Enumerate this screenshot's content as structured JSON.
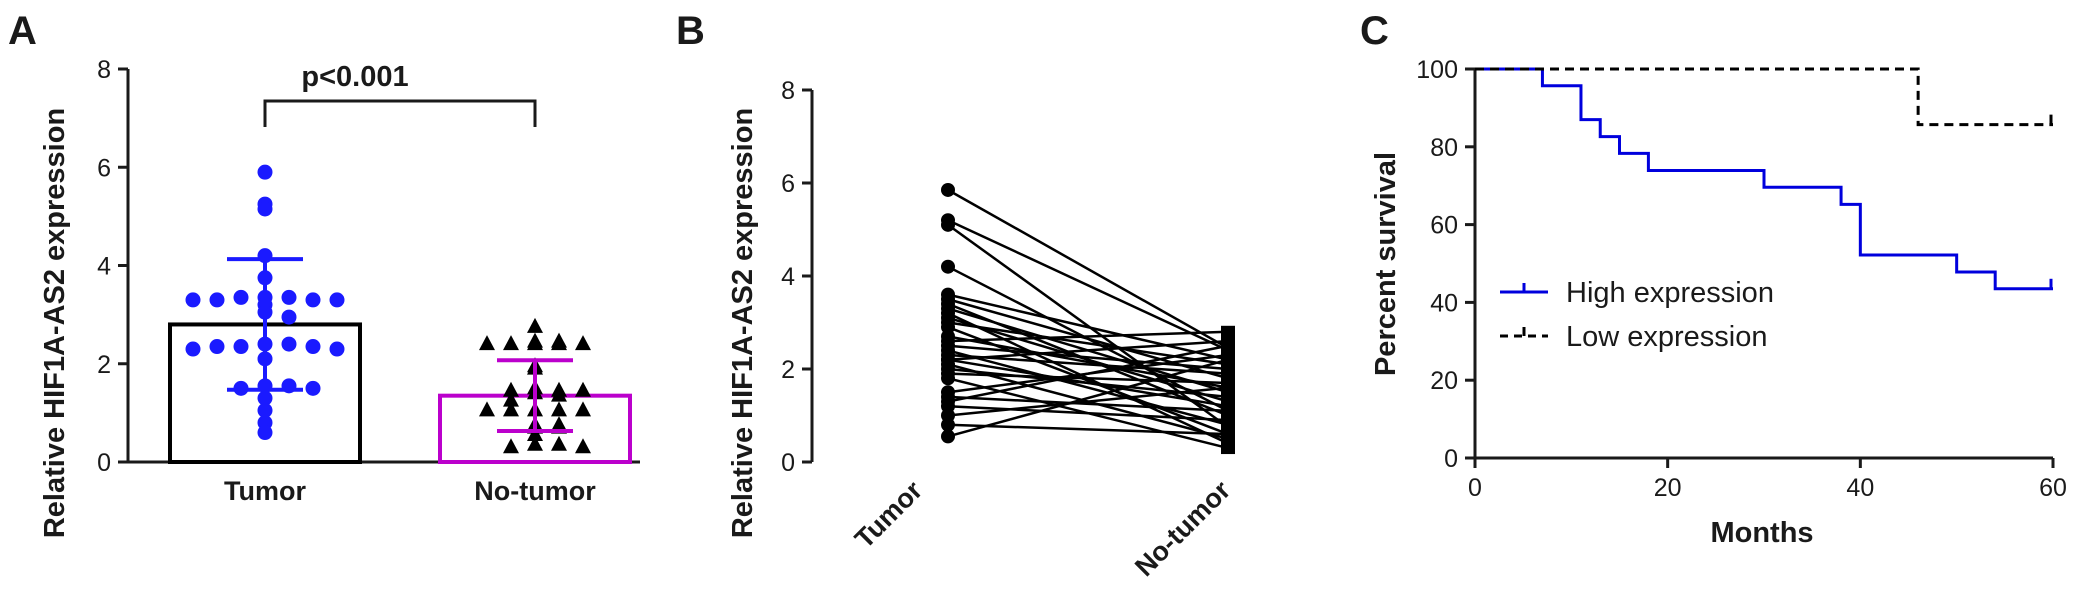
{
  "panel_labels": [
    "A",
    "B",
    "C"
  ],
  "colors": {
    "tumor": "#1a1aff",
    "no_tumor_bar": "#bb00cc",
    "no_tumor_points": "#000000",
    "paired": "#000000",
    "high_expression": "#0000dd",
    "low_expression": "#000000"
  },
  "chart_data": [
    {
      "panel": "A",
      "type": "bar",
      "ylabel": "Relative HIF1A-AS2  expression",
      "xlabel": "",
      "ylim": [
        0,
        8
      ],
      "yticks": [
        0,
        2,
        4,
        6,
        8
      ],
      "categories": [
        "Tumor",
        "No-tumor"
      ],
      "annotation": "p<0.001",
      "series": [
        {
          "name": "Tumor",
          "mean": 2.8,
          "sd": 1.33,
          "marker": "circle",
          "points": [
            5.9,
            5.25,
            5.15,
            4.2,
            3.75,
            3.35,
            3.35,
            3.35,
            3.3,
            3.3,
            3.3,
            3.3,
            3.2,
            3.05,
            2.95,
            2.4,
            2.4,
            2.35,
            2.35,
            2.35,
            2.3,
            2.3,
            2.1,
            1.55,
            1.55,
            1.5,
            1.5,
            1.3,
            1.05,
            0.8,
            0.6
          ]
        },
        {
          "name": "No-tumor",
          "mean": 1.35,
          "sd": 0.72,
          "marker": "triangle",
          "points": [
            2.75,
            2.45,
            2.45,
            2.4,
            2.4,
            2.4,
            2.4,
            2.4,
            1.95,
            1.9,
            1.5,
            1.45,
            1.45,
            1.45,
            1.4,
            1.35,
            1.25,
            1.05,
            1.05,
            1.05,
            1.05,
            1.05,
            0.75,
            0.75,
            0.7,
            0.7,
            0.55,
            0.35,
            0.35,
            0.3,
            0.3
          ]
        }
      ]
    },
    {
      "panel": "B",
      "type": "line",
      "ylabel": "Relative HIF1A-AS2  expression",
      "xlabel": "",
      "ylim": [
        0,
        8
      ],
      "yticks": [
        0,
        2,
        4,
        6,
        8
      ],
      "categories": [
        "Tumor",
        "No-tumor"
      ],
      "pairs": [
        [
          5.85,
          2.45
        ],
        [
          5.2,
          2.4
        ],
        [
          5.1,
          0.75
        ],
        [
          4.2,
          1.1
        ],
        [
          3.6,
          2.2
        ],
        [
          3.4,
          1.0
        ],
        [
          3.3,
          1.5
        ],
        [
          3.2,
          0.4
        ],
        [
          3.1,
          1.3
        ],
        [
          3.0,
          2.1
        ],
        [
          2.9,
          0.6
        ],
        [
          2.7,
          1.6
        ],
        [
          2.5,
          2.0
        ],
        [
          2.4,
          0.8
        ],
        [
          2.3,
          1.9
        ],
        [
          2.2,
          1.2
        ],
        [
          2.2,
          2.6
        ],
        [
          2.1,
          0.5
        ],
        [
          2.0,
          1.4
        ],
        [
          1.9,
          1.7
        ],
        [
          1.8,
          0.3
        ],
        [
          1.5,
          2.3
        ],
        [
          1.4,
          1.1
        ],
        [
          1.2,
          0.9
        ],
        [
          1.0,
          1.6
        ],
        [
          0.8,
          0.6
        ],
        [
          0.55,
          2.2
        ],
        [
          3.5,
          1.8
        ],
        [
          2.6,
          2.8
        ],
        [
          1.3,
          2.5
        ]
      ]
    },
    {
      "panel": "C",
      "type": "line",
      "xlabel": "Months",
      "ylabel": "Percent survival",
      "xlim": [
        0,
        60
      ],
      "ylim": [
        0,
        100
      ],
      "xticks": [
        0,
        20,
        40,
        60
      ],
      "yticks": [
        0,
        20,
        40,
        60,
        80,
        100
      ],
      "legend": "left-middle",
      "series": [
        {
          "name": "High expression",
          "style": "solid",
          "steps": [
            [
              0,
              100
            ],
            [
              7,
              95.7
            ],
            [
              11,
              87
            ],
            [
              13,
              82.6
            ],
            [
              15,
              78.3
            ],
            [
              18,
              73.9
            ],
            [
              30,
              69.6
            ],
            [
              38,
              65.2
            ],
            [
              40,
              52.2
            ],
            [
              50,
              47.8
            ],
            [
              54,
              43.5
            ],
            [
              60,
              43.5
            ]
          ],
          "censored": [
            [
              60,
              43.5
            ]
          ]
        },
        {
          "name": "Low expression",
          "style": "dashed",
          "steps": [
            [
              0,
              100
            ],
            [
              46,
              85.7
            ],
            [
              60,
              85.7
            ]
          ],
          "censored": [
            [
              60,
              85.7
            ]
          ]
        }
      ]
    }
  ]
}
